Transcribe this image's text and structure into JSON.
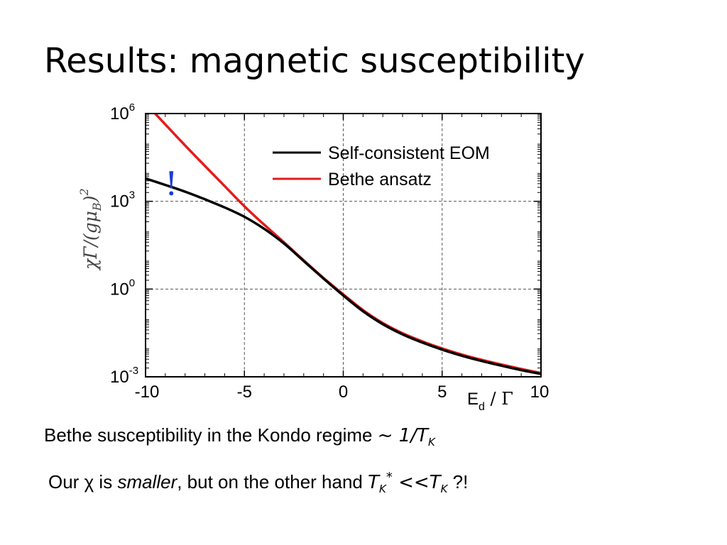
{
  "slide": {
    "title": "Results: magnetic susceptibility",
    "captions": [
      {
        "text": "Bethe susceptibility in the Kondo regime ",
        "relation": "~ 1/",
        "T": "T",
        "T_sub": "K"
      },
      {
        "prefix": "Our χ is ",
        "emphasis": "smaller",
        "middle": ", but on the other hand ",
        "T1": "T",
        "T1_sub": "K",
        "T1_sup": "*",
        "relation": " <<",
        "T2": "T",
        "T2_sub": "K",
        "suffix": "  ?!"
      }
    ],
    "exclamation_mark": "!",
    "colors": {
      "exclamation": "#1f3bd9"
    }
  },
  "chart_data": {
    "type": "line",
    "title": "",
    "xlabel_main": "E",
    "xlabel_sub": "d",
    "xlabel_rest": " / Γ",
    "ylabel": "χΓ/(gμ",
    "ylabel_sub": "B",
    "ylabel_close": ")",
    "ylabel_sup": "2",
    "xlim": [
      -10,
      10
    ],
    "ylim_log10": [
      -3,
      6
    ],
    "yscale": "log",
    "grid": true,
    "x_ticks": [
      {
        "value": -10,
        "label": "-10"
      },
      {
        "value": -5,
        "label": "-5"
      },
      {
        "value": 0,
        "label": "0"
      },
      {
        "value": 5,
        "label": "5"
      },
      {
        "value": 10,
        "label": "10"
      }
    ],
    "y_ticks": [
      {
        "exp": 6,
        "base": "10",
        "exp_label": "6"
      },
      {
        "exp": 3,
        "base": "10",
        "exp_label": "3"
      },
      {
        "exp": 0,
        "base": "10",
        "exp_label": "0"
      },
      {
        "exp": -3,
        "base": "10",
        "exp_label": "-3"
      }
    ],
    "legend_position": "top-right",
    "series": [
      {
        "name": "Self-consistent EOM",
        "color": "#000000",
        "x": [
          -10,
          -9,
          -8,
          -7,
          -6,
          -5,
          -4,
          -3,
          -2,
          -1,
          0,
          1,
          2,
          3,
          4,
          5,
          6,
          7,
          8,
          9,
          10
        ],
        "log10_y": [
          3.78,
          3.56,
          3.33,
          3.07,
          2.79,
          2.47,
          2.06,
          1.56,
          0.96,
          0.36,
          -0.22,
          -0.76,
          -1.2,
          -1.55,
          -1.83,
          -2.07,
          -2.28,
          -2.46,
          -2.62,
          -2.77,
          -2.9
        ]
      },
      {
        "name": "Bethe ansatz",
        "color": "#e41a1c",
        "x": [
          -10,
          -9,
          -8,
          -7,
          -6,
          -5,
          -4,
          -3,
          -2,
          -1,
          0,
          1,
          2,
          3,
          4,
          5,
          6,
          7,
          8,
          9,
          10
        ],
        "log10_y": [
          6.35,
          5.63,
          4.91,
          4.21,
          3.52,
          2.83,
          2.2,
          1.6,
          0.98,
          0.38,
          -0.18,
          -0.72,
          -1.16,
          -1.51,
          -1.79,
          -2.03,
          -2.24,
          -2.42,
          -2.58,
          -2.73,
          -2.87
        ]
      }
    ]
  }
}
